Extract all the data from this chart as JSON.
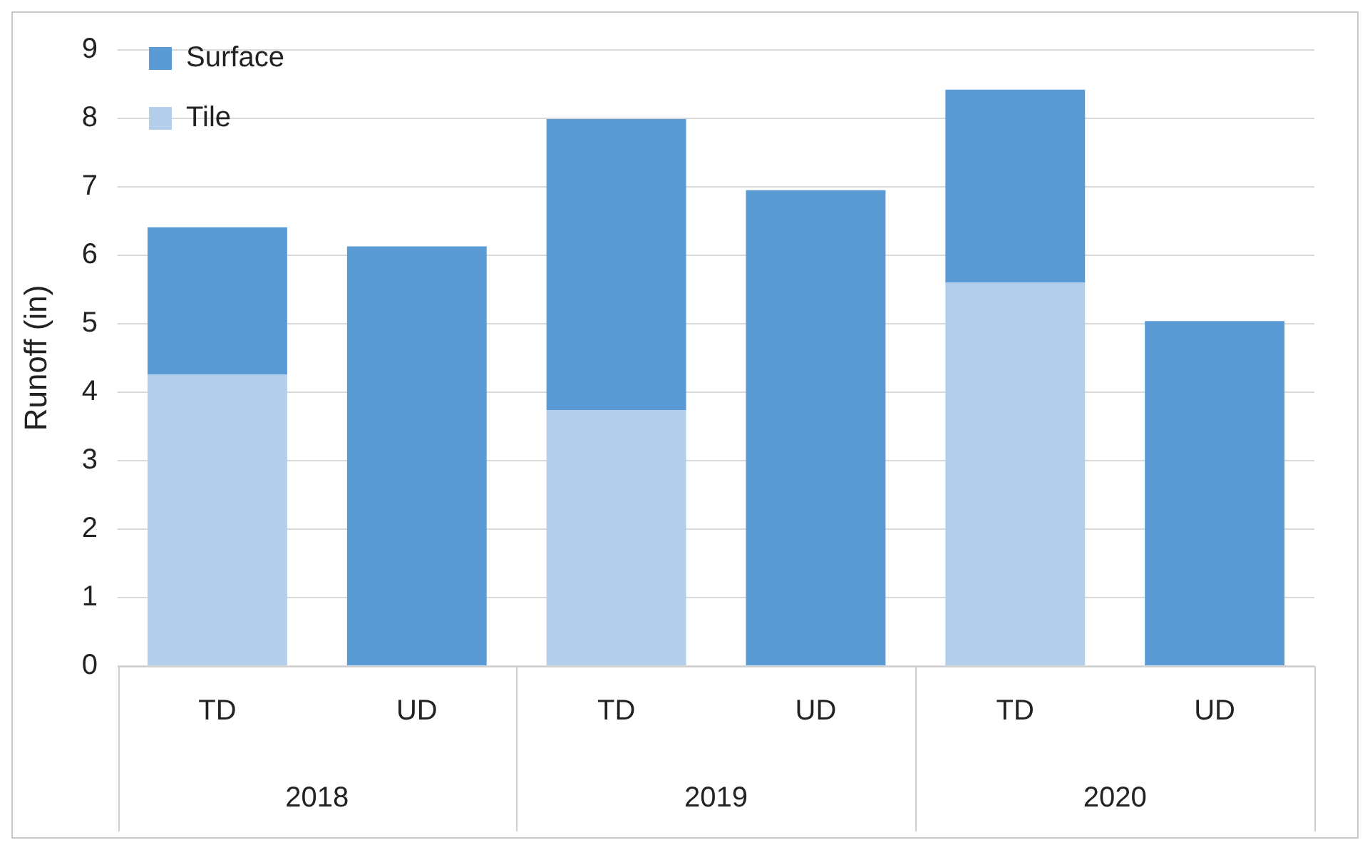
{
  "chart_data": {
    "type": "bar",
    "ylabel": "Runoff (in)",
    "categories": [
      "TD",
      "UD",
      "TD",
      "UD",
      "TD",
      "UD"
    ],
    "series": [
      {
        "name": "Tile",
        "color": "#b4cfec",
        "values": [
          4.26,
          null,
          3.74,
          null,
          5.6,
          null
        ]
      },
      {
        "name": "Surface",
        "color": "#5b9bd5",
        "values": [
          2.15,
          6.13,
          4.25,
          6.95,
          2.82,
          5.04
        ]
      }
    ],
    "stacked": true,
    "ylim": [
      0,
      9
    ],
    "yticks": [
      0,
      1,
      2,
      3,
      4,
      5,
      6,
      7,
      8,
      9
    ],
    "grid": "y",
    "legend": "top left",
    "annotations": [
      "2018",
      "2019",
      "2020"
    ]
  }
}
